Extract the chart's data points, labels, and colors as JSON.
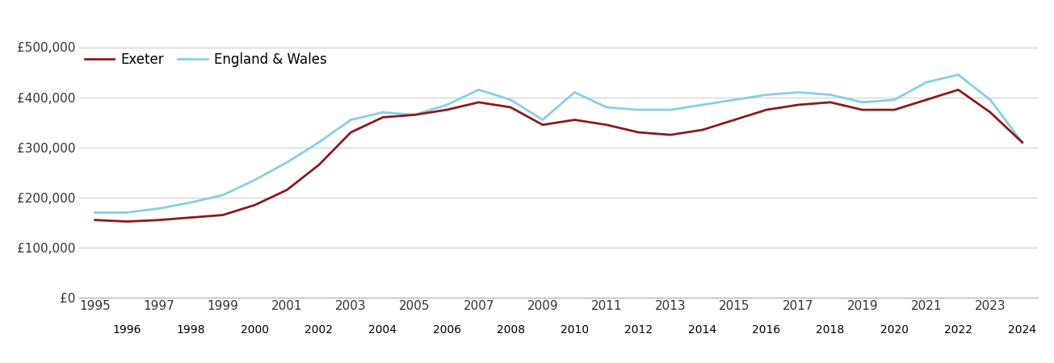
{
  "exeter": {
    "years": [
      1995,
      1996,
      1997,
      1998,
      1999,
      2000,
      2001,
      2002,
      2003,
      2004,
      2005,
      2006,
      2007,
      2008,
      2009,
      2010,
      2011,
      2012,
      2013,
      2014,
      2015,
      2016,
      2017,
      2018,
      2019,
      2020,
      2021,
      2022,
      2023,
      2024
    ],
    "values": [
      155000,
      152000,
      155000,
      160000,
      165000,
      185000,
      215000,
      265000,
      330000,
      360000,
      365000,
      375000,
      390000,
      380000,
      345000,
      355000,
      345000,
      330000,
      325000,
      335000,
      355000,
      375000,
      385000,
      390000,
      375000,
      375000,
      395000,
      415000,
      370000,
      310000
    ]
  },
  "england_wales": {
    "years": [
      1995,
      1996,
      1997,
      1998,
      1999,
      2000,
      2001,
      2002,
      2003,
      2004,
      2005,
      2006,
      2007,
      2008,
      2009,
      2010,
      2011,
      2012,
      2013,
      2014,
      2015,
      2016,
      2017,
      2018,
      2019,
      2020,
      2021,
      2022,
      2023,
      2024
    ],
    "values": [
      170000,
      170000,
      178000,
      190000,
      205000,
      235000,
      270000,
      310000,
      355000,
      370000,
      365000,
      385000,
      415000,
      395000,
      355000,
      410000,
      380000,
      375000,
      375000,
      385000,
      395000,
      405000,
      410000,
      405000,
      390000,
      395000,
      430000,
      445000,
      395000,
      310000
    ]
  },
  "exeter_color": "#8b1a1a",
  "england_wales_color": "#87ceeb",
  "line_width": 2.0,
  "background_color": "#ffffff",
  "grid_color": "#d0d0d0",
  "ylim": [
    0,
    500000
  ],
  "yticks": [
    0,
    100000,
    200000,
    300000,
    400000,
    500000
  ],
  "ytick_labels": [
    "£0",
    "£100,000",
    "£200,000",
    "£300,000",
    "£400,000",
    "£500,000"
  ],
  "legend_exeter": "Exeter",
  "legend_ew": "England & Wales",
  "tick_fontsize": 11,
  "legend_fontsize": 12,
  "odd_years": [
    1995,
    1997,
    1999,
    2001,
    2003,
    2005,
    2007,
    2009,
    2011,
    2013,
    2015,
    2017,
    2019,
    2021,
    2023
  ],
  "even_years": [
    1996,
    1998,
    2000,
    2002,
    2004,
    2006,
    2008,
    2010,
    2012,
    2014,
    2016,
    2018,
    2020,
    2022,
    2024
  ]
}
